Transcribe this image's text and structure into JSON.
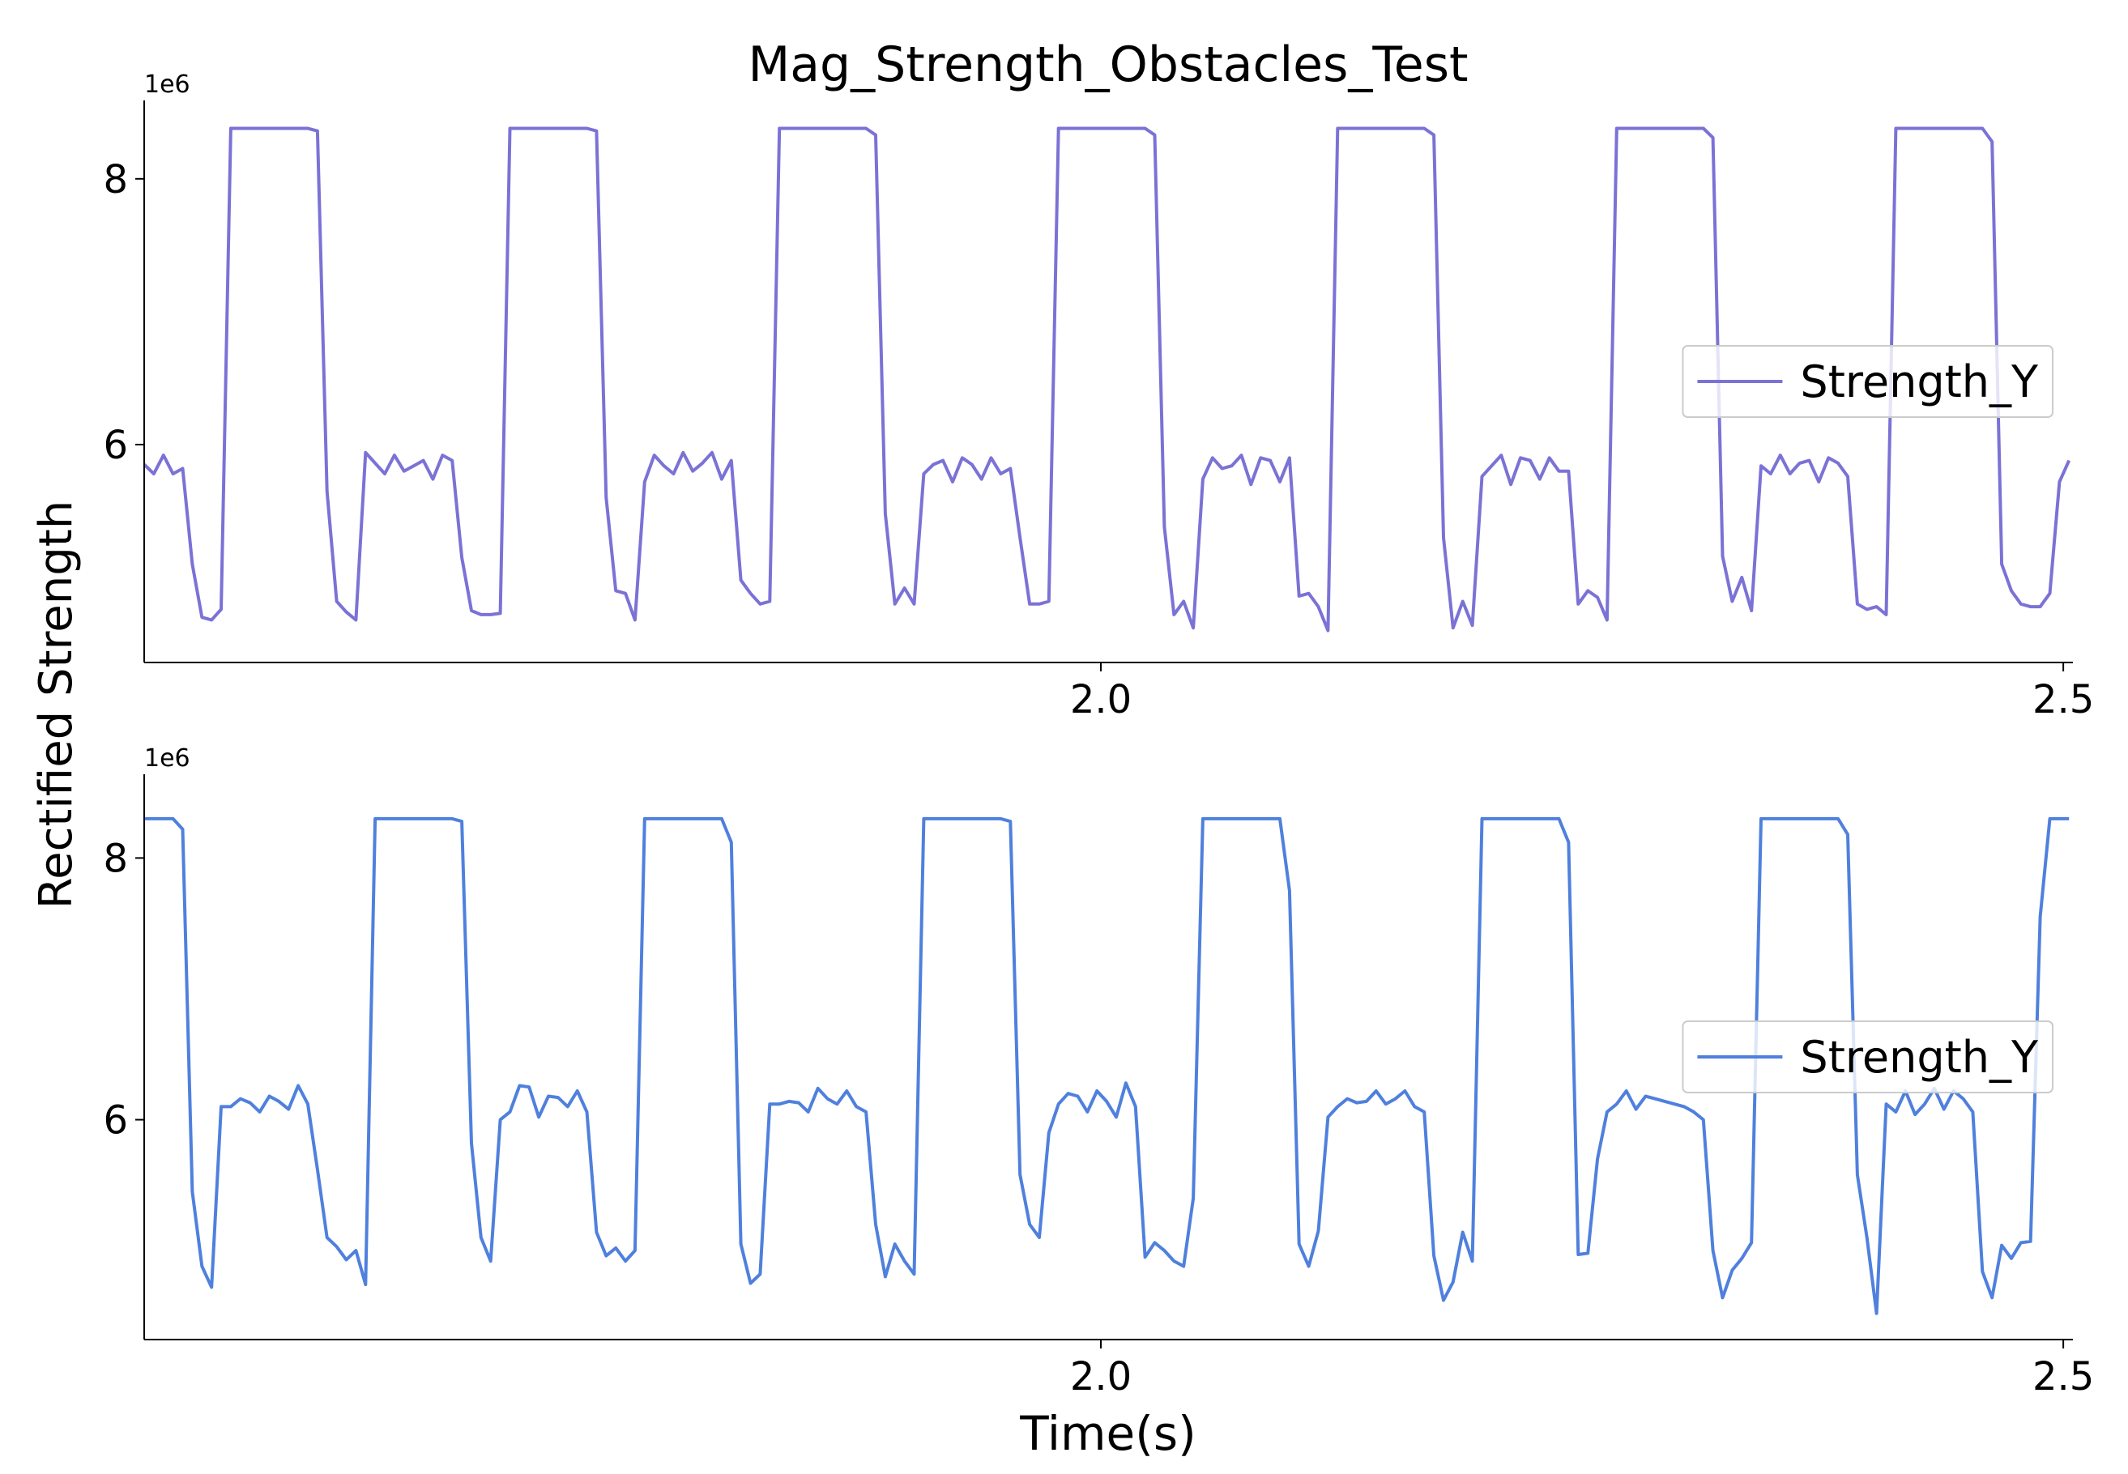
{
  "chart_data": [
    {
      "type": "line",
      "title": "Mag_Strength_Obstacles_Test",
      "ylabel": "Rectified Strength",
      "y_offset_label": "1e6",
      "x": [
        1.503,
        1.508,
        1.513,
        1.518,
        1.523,
        1.528,
        1.533,
        1.538,
        1.543,
        1.548,
        1.553,
        1.558,
        1.563,
        1.568,
        1.573,
        1.578,
        1.583,
        1.588,
        1.593,
        1.598,
        1.603,
        1.608,
        1.613,
        1.618,
        1.623,
        1.628,
        1.633,
        1.638,
        1.643,
        1.648,
        1.653,
        1.658,
        1.663,
        1.668,
        1.673,
        1.678,
        1.683,
        1.688,
        1.693,
        1.698,
        1.703,
        1.708,
        1.713,
        1.718,
        1.723,
        1.728,
        1.733,
        1.738,
        1.743,
        1.748,
        1.753,
        1.758,
        1.763,
        1.768,
        1.773,
        1.778,
        1.783,
        1.788,
        1.793,
        1.798,
        1.803,
        1.808,
        1.813,
        1.818,
        1.823,
        1.828,
        1.833,
        1.838,
        1.843,
        1.848,
        1.853,
        1.858,
        1.863,
        1.868,
        1.873,
        1.878,
        1.883,
        1.888,
        1.893,
        1.898,
        1.903,
        1.908,
        1.913,
        1.918,
        1.923,
        1.928,
        1.933,
        1.938,
        1.943,
        1.948,
        1.953,
        1.958,
        1.963,
        1.968,
        1.973,
        1.978,
        1.983,
        1.988,
        1.993,
        1.998,
        2.003,
        2.008,
        2.013,
        2.018,
        2.023,
        2.028,
        2.033,
        2.038,
        2.043,
        2.048,
        2.053,
        2.058,
        2.063,
        2.068,
        2.073,
        2.078,
        2.083,
        2.088,
        2.093,
        2.098,
        2.103,
        2.108,
        2.113,
        2.118,
        2.123,
        2.128,
        2.133,
        2.138,
        2.143,
        2.148,
        2.153,
        2.158,
        2.163,
        2.168,
        2.173,
        2.178,
        2.183,
        2.188,
        2.193,
        2.198,
        2.203,
        2.208,
        2.213,
        2.218,
        2.223,
        2.228,
        2.233,
        2.238,
        2.243,
        2.248,
        2.253,
        2.258,
        2.263,
        2.268,
        2.273,
        2.278,
        2.283,
        2.288,
        2.293,
        2.298,
        2.303,
        2.308,
        2.313,
        2.318,
        2.323,
        2.328,
        2.333,
        2.338,
        2.343,
        2.348,
        2.353,
        2.358,
        2.363,
        2.368,
        2.373,
        2.378,
        2.383,
        2.388,
        2.393,
        2.398,
        2.403,
        2.408,
        2.413,
        2.418,
        2.423,
        2.428,
        2.433,
        2.438,
        2.443,
        2.448,
        2.453,
        2.458,
        2.463,
        2.468,
        2.473,
        2.478,
        2.483,
        2.488,
        2.493,
        2.498,
        2.503
      ],
      "series": [
        {
          "name": "Strength_Y",
          "color": "#7b72d6",
          "values": [
            5.85,
            5.78,
            5.92,
            5.78,
            5.82,
            5.1,
            4.7,
            4.68,
            4.76,
            8.38,
            8.38,
            8.38,
            8.38,
            8.38,
            8.38,
            8.38,
            8.38,
            8.38,
            8.36,
            5.65,
            4.82,
            4.74,
            4.68,
            5.94,
            5.86,
            5.78,
            5.92,
            5.8,
            5.84,
            5.88,
            5.74,
            5.92,
            5.88,
            5.15,
            4.75,
            4.72,
            4.72,
            4.73,
            8.38,
            8.38,
            8.38,
            8.38,
            8.38,
            8.38,
            8.38,
            8.38,
            8.38,
            8.36,
            5.6,
            4.9,
            4.88,
            4.68,
            5.72,
            5.92,
            5.84,
            5.78,
            5.94,
            5.8,
            5.86,
            5.94,
            5.74,
            5.88,
            4.98,
            4.88,
            4.8,
            4.82,
            8.38,
            8.38,
            8.38,
            8.38,
            8.38,
            8.38,
            8.38,
            8.38,
            8.38,
            8.38,
            8.33,
            5.48,
            4.8,
            4.92,
            4.8,
            5.78,
            5.85,
            5.88,
            5.72,
            5.9,
            5.85,
            5.74,
            5.9,
            5.78,
            5.82,
            5.3,
            4.8,
            4.8,
            4.82,
            8.38,
            8.38,
            8.38,
            8.38,
            8.38,
            8.38,
            8.38,
            8.38,
            8.38,
            8.38,
            8.33,
            5.38,
            4.72,
            4.82,
            4.62,
            5.74,
            5.9,
            5.82,
            5.84,
            5.92,
            5.7,
            5.9,
            5.88,
            5.72,
            5.9,
            4.86,
            4.88,
            4.78,
            4.6,
            8.38,
            8.38,
            8.38,
            8.38,
            8.38,
            8.38,
            8.38,
            8.38,
            8.38,
            8.38,
            8.33,
            5.3,
            4.62,
            4.82,
            4.64,
            5.76,
            5.84,
            5.92,
            5.7,
            5.9,
            5.88,
            5.74,
            5.9,
            5.8,
            5.8,
            4.8,
            4.9,
            4.85,
            4.68,
            8.38,
            8.38,
            8.38,
            8.38,
            8.38,
            8.38,
            8.38,
            8.38,
            8.38,
            8.38,
            8.31,
            5.16,
            4.82,
            5.0,
            4.75,
            5.84,
            5.78,
            5.92,
            5.78,
            5.86,
            5.88,
            5.72,
            5.9,
            5.86,
            5.76,
            4.8,
            4.76,
            4.78,
            4.72,
            8.38,
            8.38,
            8.38,
            8.38,
            8.38,
            8.38,
            8.38,
            8.38,
            8.38,
            8.38,
            8.28,
            5.1,
            4.9,
            4.8,
            4.78,
            4.78,
            4.88,
            5.72,
            5.88
          ]
        }
      ],
      "xlim": [
        1.503,
        2.505
      ],
      "xticks": [
        {
          "value": 2,
          "label": "2.0"
        },
        2.5
      ],
      "ylim": [
        4.36,
        8.59
      ],
      "yticks": [
        6,
        8
      ],
      "legend": "center right"
    },
    {
      "type": "line",
      "xlabel": "Time(s)",
      "y_offset_label": "1e6",
      "x": [
        1.503,
        1.508,
        1.513,
        1.518,
        1.523,
        1.528,
        1.533,
        1.538,
        1.543,
        1.548,
        1.553,
        1.558,
        1.563,
        1.568,
        1.573,
        1.578,
        1.583,
        1.588,
        1.593,
        1.598,
        1.603,
        1.608,
        1.613,
        1.618,
        1.623,
        1.628,
        1.633,
        1.638,
        1.643,
        1.648,
        1.653,
        1.658,
        1.663,
        1.668,
        1.673,
        1.678,
        1.683,
        1.688,
        1.693,
        1.698,
        1.703,
        1.708,
        1.713,
        1.718,
        1.723,
        1.728,
        1.733,
        1.738,
        1.743,
        1.748,
        1.753,
        1.758,
        1.763,
        1.768,
        1.773,
        1.778,
        1.783,
        1.788,
        1.793,
        1.798,
        1.803,
        1.808,
        1.813,
        1.818,
        1.823,
        1.828,
        1.833,
        1.838,
        1.843,
        1.848,
        1.853,
        1.858,
        1.863,
        1.868,
        1.873,
        1.878,
        1.883,
        1.888,
        1.893,
        1.898,
        1.903,
        1.908,
        1.913,
        1.918,
        1.923,
        1.928,
        1.933,
        1.938,
        1.943,
        1.948,
        1.953,
        1.958,
        1.963,
        1.968,
        1.973,
        1.978,
        1.983,
        1.988,
        1.993,
        1.998,
        2.003,
        2.008,
        2.013,
        2.018,
        2.023,
        2.028,
        2.033,
        2.038,
        2.043,
        2.048,
        2.053,
        2.058,
        2.063,
        2.068,
        2.073,
        2.078,
        2.083,
        2.088,
        2.093,
        2.098,
        2.103,
        2.108,
        2.113,
        2.118,
        2.123,
        2.128,
        2.133,
        2.138,
        2.143,
        2.148,
        2.153,
        2.158,
        2.163,
        2.168,
        2.173,
        2.178,
        2.183,
        2.188,
        2.193,
        2.198,
        2.203,
        2.208,
        2.213,
        2.218,
        2.223,
        2.228,
        2.233,
        2.238,
        2.243,
        2.248,
        2.253,
        2.258,
        2.263,
        2.268,
        2.273,
        2.278,
        2.283,
        2.288,
        2.293,
        2.298,
        2.303,
        2.308,
        2.313,
        2.318,
        2.323,
        2.328,
        2.333,
        2.338,
        2.343,
        2.348,
        2.353,
        2.358,
        2.363,
        2.368,
        2.373,
        2.378,
        2.383,
        2.388,
        2.393,
        2.398,
        2.403,
        2.408,
        2.413,
        2.418,
        2.423,
        2.428,
        2.433,
        2.438,
        2.443,
        2.448,
        2.453,
        2.458,
        2.463,
        2.468,
        2.473,
        2.478,
        2.483,
        2.488,
        2.493,
        2.498,
        2.503
      ],
      "series": [
        {
          "name": "Strength_Y",
          "color": "#4f80dd",
          "values": [
            8.3,
            8.3,
            8.3,
            8.3,
            8.22,
            5.45,
            4.88,
            4.72,
            6.1,
            6.1,
            6.16,
            6.13,
            6.06,
            6.18,
            6.14,
            6.08,
            6.26,
            6.12,
            5.62,
            5.1,
            5.03,
            4.93,
            5.0,
            4.74,
            8.3,
            8.3,
            8.3,
            8.3,
            8.3,
            8.3,
            8.3,
            8.3,
            8.3,
            8.28,
            5.82,
            5.1,
            4.92,
            6.0,
            6.06,
            6.26,
            6.25,
            6.02,
            6.18,
            6.17,
            6.1,
            6.22,
            6.06,
            5.14,
            4.96,
            5.02,
            4.92,
            5.0,
            8.3,
            8.3,
            8.3,
            8.3,
            8.3,
            8.3,
            8.3,
            8.3,
            8.3,
            8.12,
            5.05,
            4.75,
            4.82,
            6.12,
            6.12,
            6.14,
            6.13,
            6.06,
            6.24,
            6.16,
            6.12,
            6.22,
            6.1,
            6.06,
            5.2,
            4.8,
            5.05,
            4.92,
            4.82,
            8.3,
            8.3,
            8.3,
            8.3,
            8.3,
            8.3,
            8.3,
            8.3,
            8.3,
            8.28,
            5.58,
            5.2,
            5.1,
            5.9,
            6.12,
            6.2,
            6.18,
            6.06,
            6.22,
            6.14,
            6.02,
            6.28,
            6.1,
            4.95,
            5.06,
            5.0,
            4.92,
            4.88,
            5.4,
            8.3,
            8.3,
            8.3,
            8.3,
            8.3,
            8.3,
            8.3,
            8.3,
            8.3,
            7.75,
            5.05,
            4.88,
            5.15,
            6.02,
            6.1,
            6.16,
            6.13,
            6.14,
            6.22,
            6.12,
            6.16,
            6.22,
            6.1,
            6.06,
            4.96,
            4.62,
            4.76,
            5.14,
            4.92,
            8.3,
            8.3,
            8.3,
            8.3,
            8.3,
            8.3,
            8.3,
            8.3,
            8.3,
            8.12,
            4.97,
            4.98,
            5.7,
            6.06,
            6.12,
            6.22,
            6.08,
            6.18,
            6.16,
            6.14,
            6.12,
            6.1,
            6.06,
            6.0,
            5.0,
            4.64,
            4.85,
            4.94,
            5.06,
            8.3,
            8.3,
            8.3,
            8.3,
            8.3,
            8.3,
            8.3,
            8.3,
            8.3,
            8.18,
            5.58,
            5.1,
            4.52,
            6.12,
            6.06,
            6.22,
            6.04,
            6.12,
            6.24,
            6.08,
            6.22,
            6.16,
            6.06,
            4.84,
            4.64,
            5.04,
            4.94,
            5.06,
            5.07,
            7.55,
            8.3,
            8.3,
            8.3
          ]
        }
      ],
      "xlim": [
        1.503,
        2.505
      ],
      "xticks": [
        {
          "value": 2,
          "label": "2.0"
        },
        2.5
      ],
      "ylim": [
        4.32,
        8.64
      ],
      "yticks": [
        6,
        8
      ],
      "legend": "center right"
    }
  ]
}
